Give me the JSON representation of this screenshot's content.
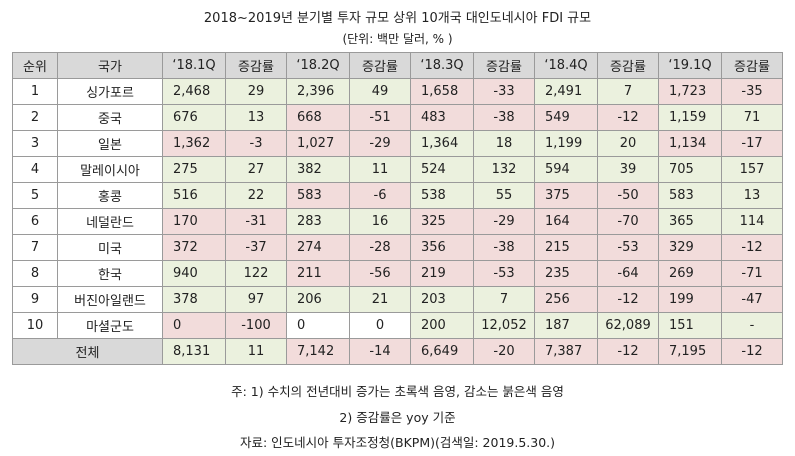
{
  "title": "2018~2019년 분기별 투자 규모 상위 10개국 대인도네시아 FDI 규모",
  "unit": "(단위: 백만 달러, % )",
  "headers": [
    "순위",
    "국가",
    "‘18.1Q",
    "증감률",
    "‘18.2Q",
    "증감률",
    "‘18.3Q",
    "증감률",
    "‘18.4Q",
    "증감률",
    "‘19.1Q",
    "증감률"
  ],
  "rows": [
    {
      "rank": "1",
      "country": "싱가포르",
      "cells": [
        {
          "v": "2,468",
          "c": "g"
        },
        {
          "v": "29",
          "c": "g"
        },
        {
          "v": "2,396",
          "c": "g"
        },
        {
          "v": "49",
          "c": "g"
        },
        {
          "v": "1,658",
          "c": "r"
        },
        {
          "v": "-33",
          "c": "r"
        },
        {
          "v": "2,491",
          "c": "g"
        },
        {
          "v": "7",
          "c": "g"
        },
        {
          "v": "1,723",
          "c": "r"
        },
        {
          "v": "-35",
          "c": "r"
        }
      ]
    },
    {
      "rank": "2",
      "country": "중국",
      "cells": [
        {
          "v": "676",
          "c": "g"
        },
        {
          "v": "13",
          "c": "g"
        },
        {
          "v": "668",
          "c": "r"
        },
        {
          "v": "-51",
          "c": "r"
        },
        {
          "v": "483",
          "c": "r"
        },
        {
          "v": "-38",
          "c": "r"
        },
        {
          "v": "549",
          "c": "r"
        },
        {
          "v": "-12",
          "c": "r"
        },
        {
          "v": "1,159",
          "c": "g"
        },
        {
          "v": "71",
          "c": "g"
        }
      ]
    },
    {
      "rank": "3",
      "country": "일본",
      "cells": [
        {
          "v": "1,362",
          "c": "r"
        },
        {
          "v": "-3",
          "c": "r"
        },
        {
          "v": "1,027",
          "c": "r"
        },
        {
          "v": "-29",
          "c": "r"
        },
        {
          "v": "1,364",
          "c": "g"
        },
        {
          "v": "18",
          "c": "g"
        },
        {
          "v": "1,199",
          "c": "g"
        },
        {
          "v": "20",
          "c": "g"
        },
        {
          "v": "1,134",
          "c": "r"
        },
        {
          "v": "-17",
          "c": "r"
        }
      ]
    },
    {
      "rank": "4",
      "country": "말레이시아",
      "cells": [
        {
          "v": "275",
          "c": "g"
        },
        {
          "v": "27",
          "c": "g"
        },
        {
          "v": "382",
          "c": "g"
        },
        {
          "v": "11",
          "c": "g"
        },
        {
          "v": "524",
          "c": "g"
        },
        {
          "v": "132",
          "c": "g"
        },
        {
          "v": "594",
          "c": "g"
        },
        {
          "v": "39",
          "c": "g"
        },
        {
          "v": "705",
          "c": "g"
        },
        {
          "v": "157",
          "c": "g"
        }
      ]
    },
    {
      "rank": "5",
      "country": "홍콩",
      "cells": [
        {
          "v": "516",
          "c": "g"
        },
        {
          "v": "22",
          "c": "g"
        },
        {
          "v": "583",
          "c": "r"
        },
        {
          "v": "-6",
          "c": "r"
        },
        {
          "v": "538",
          "c": "g"
        },
        {
          "v": "55",
          "c": "g"
        },
        {
          "v": "375",
          "c": "r"
        },
        {
          "v": "-50",
          "c": "r"
        },
        {
          "v": "583",
          "c": "g"
        },
        {
          "v": "13",
          "c": "g"
        }
      ]
    },
    {
      "rank": "6",
      "country": "네덜란드",
      "cells": [
        {
          "v": "170",
          "c": "r"
        },
        {
          "v": "-31",
          "c": "r"
        },
        {
          "v": "283",
          "c": "g"
        },
        {
          "v": "16",
          "c": "g"
        },
        {
          "v": "325",
          "c": "r"
        },
        {
          "v": "-29",
          "c": "r"
        },
        {
          "v": "164",
          "c": "r"
        },
        {
          "v": "-70",
          "c": "r"
        },
        {
          "v": "365",
          "c": "g"
        },
        {
          "v": "114",
          "c": "g"
        }
      ]
    },
    {
      "rank": "7",
      "country": "미국",
      "cells": [
        {
          "v": "372",
          "c": "r"
        },
        {
          "v": "-37",
          "c": "r"
        },
        {
          "v": "274",
          "c": "r"
        },
        {
          "v": "-28",
          "c": "r"
        },
        {
          "v": "356",
          "c": "r"
        },
        {
          "v": "-38",
          "c": "r"
        },
        {
          "v": "215",
          "c": "r"
        },
        {
          "v": "-53",
          "c": "r"
        },
        {
          "v": "329",
          "c": "r"
        },
        {
          "v": "-12",
          "c": "r"
        }
      ]
    },
    {
      "rank": "8",
      "country": "한국",
      "cells": [
        {
          "v": "940",
          "c": "g"
        },
        {
          "v": "122",
          "c": "g"
        },
        {
          "v": "211",
          "c": "r"
        },
        {
          "v": "-56",
          "c": "r"
        },
        {
          "v": "219",
          "c": "r"
        },
        {
          "v": "-53",
          "c": "r"
        },
        {
          "v": "235",
          "c": "r"
        },
        {
          "v": "-64",
          "c": "r"
        },
        {
          "v": "269",
          "c": "r"
        },
        {
          "v": "-71",
          "c": "r"
        }
      ]
    },
    {
      "rank": "9",
      "country": "버진아일랜드",
      "cells": [
        {
          "v": "378",
          "c": "g"
        },
        {
          "v": "97",
          "c": "g"
        },
        {
          "v": "206",
          "c": "g"
        },
        {
          "v": "21",
          "c": "g"
        },
        {
          "v": "203",
          "c": "g"
        },
        {
          "v": "7",
          "c": "g"
        },
        {
          "v": "256",
          "c": "r"
        },
        {
          "v": "-12",
          "c": "r"
        },
        {
          "v": "199",
          "c": "r"
        },
        {
          "v": "-47",
          "c": "r"
        }
      ]
    },
    {
      "rank": "10",
      "country": "마셜군도",
      "cells": [
        {
          "v": "0",
          "c": "r"
        },
        {
          "v": "-100",
          "c": "r"
        },
        {
          "v": "0",
          "c": "w"
        },
        {
          "v": "0",
          "c": "w"
        },
        {
          "v": "200",
          "c": "g"
        },
        {
          "v": "12,052",
          "c": "g"
        },
        {
          "v": "187",
          "c": "g"
        },
        {
          "v": "62,089",
          "c": "g"
        },
        {
          "v": "151",
          "c": "g"
        },
        {
          "v": "-",
          "c": "g"
        }
      ]
    }
  ],
  "total": {
    "label": "전체",
    "cells": [
      {
        "v": "8,131",
        "c": "g"
      },
      {
        "v": "11",
        "c": "g"
      },
      {
        "v": "7,142",
        "c": "r"
      },
      {
        "v": "-14",
        "c": "r"
      },
      {
        "v": "6,649",
        "c": "r"
      },
      {
        "v": "-20",
        "c": "r"
      },
      {
        "v": "7,387",
        "c": "r"
      },
      {
        "v": "-12",
        "c": "r"
      },
      {
        "v": "7,195",
        "c": "r"
      },
      {
        "v": "-12",
        "c": "r"
      }
    ]
  },
  "notes": [
    "주: 1) 수치의 전년대비 증가는 초록색 음영, 감소는 붉은색 음영",
    "2) 증감률은  yoy 기준",
    "자료: 인도네시아 투자조정청(BKPM)(검색일: 2019.5.30.)"
  ],
  "colors": {
    "increase": "#ebf1de",
    "decrease": "#f2dcdb",
    "header": "#d9d9d9"
  }
}
